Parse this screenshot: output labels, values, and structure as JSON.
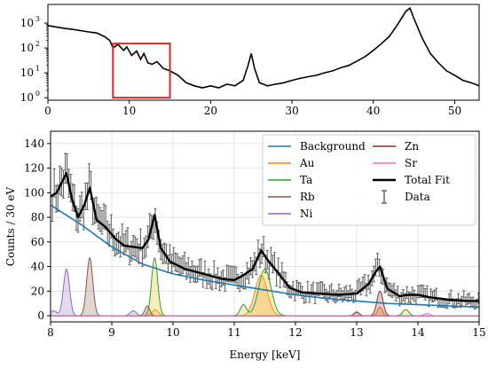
{
  "chart_data": [
    {
      "type": "line",
      "title": "",
      "xlabel": "",
      "ylabel": "",
      "xlim": [
        0,
        53
      ],
      "ylim_log10": [
        -0.1,
        3.75
      ],
      "y_scale": "log",
      "x_ticks": [
        0,
        10,
        20,
        30,
        40,
        50
      ],
      "x_tick_labels": [
        "0",
        "10",
        "20",
        "30",
        "40",
        "50"
      ],
      "y_ticks": [
        0,
        1,
        2,
        3
      ],
      "y_tick_labels": [
        "10",
        "10",
        "10",
        "10"
      ],
      "y_tick_exponents": [
        "0",
        "1",
        "2",
        "3"
      ],
      "grid": false,
      "series": [
        {
          "color": "#000000",
          "x": [
            0,
            1,
            2,
            3,
            4,
            5,
            6,
            7,
            7.6,
            8,
            8.6,
            9.3,
            9.7,
            10.3,
            10.9,
            11.4,
            11.8,
            12.3,
            12.8,
            13.4,
            14.2,
            15,
            16,
            17,
            18,
            19,
            20,
            21,
            22,
            23,
            24,
            24.6,
            25,
            25.4,
            26,
            27,
            28,
            29,
            30,
            31,
            32,
            33,
            34,
            35,
            36,
            37,
            38,
            39,
            40,
            41,
            42,
            43,
            44,
            44.5,
            45,
            46,
            47,
            48,
            49,
            50,
            51,
            52,
            53
          ],
          "y": [
            800,
            700,
            620,
            560,
            500,
            440,
            400,
            280,
            200,
            100,
            140,
            80,
            110,
            50,
            75,
            35,
            60,
            25,
            22,
            28,
            15,
            12,
            8,
            4,
            3,
            2.5,
            3,
            2.5,
            3.5,
            3,
            5,
            20,
            60,
            15,
            4,
            3,
            3.5,
            4,
            5,
            6,
            7,
            8,
            10,
            12,
            16,
            20,
            30,
            45,
            80,
            150,
            300,
            900,
            3000,
            4000,
            1500,
            250,
            60,
            25,
            12,
            8,
            5,
            4,
            3
          ]
        }
      ],
      "annotations": [
        {
          "type": "rectangle",
          "color": "#d62728",
          "x_range": [
            8,
            15
          ],
          "y_range": [
            1,
            150
          ]
        }
      ]
    },
    {
      "type": "line",
      "title": "",
      "xlabel": "Energy [keV]",
      "ylabel": "Counts / 30 eV",
      "xlim": [
        8,
        15
      ],
      "ylim": [
        -5,
        150
      ],
      "x_ticks": [
        8,
        9,
        10,
        11,
        12,
        13,
        14,
        15
      ],
      "x_tick_labels": [
        "8",
        "9",
        "10",
        "11",
        "12",
        "13",
        "14",
        "15"
      ],
      "y_ticks": [
        0,
        20,
        40,
        60,
        80,
        100,
        120,
        140
      ],
      "y_tick_labels": [
        "0",
        "20",
        "40",
        "60",
        "80",
        "100",
        "120",
        "140"
      ],
      "grid": true,
      "legend_position": "top-right",
      "series": [
        {
          "name": "Background",
          "color": "#1f77b4",
          "x": [
            8,
            8.5,
            9,
            9.5,
            10,
            10.5,
            11,
            11.5,
            12,
            12.5,
            13,
            13.5,
            14,
            14.5,
            15
          ],
          "y": [
            90,
            74,
            56,
            42,
            34,
            29,
            25,
            21,
            17,
            14,
            12,
            10,
            9,
            8,
            7
          ]
        },
        {
          "name": "Au",
          "color": "#ff7f0e",
          "fill": "rgba(255,127,14,0.25)",
          "peaks": [
            [
              9.71,
              5,
              0.05
            ],
            [
              11.44,
              33,
              0.1
            ],
            [
              13.38,
              7,
              0.04
            ]
          ]
        },
        {
          "name": "Ta",
          "color": "#2ca02c",
          "fill": "rgba(230,200,40,0.3)",
          "peaks": [
            [
              9.7,
              47,
              0.05
            ],
            [
              11.5,
              38,
              0.1
            ],
            [
              11.15,
              9,
              0.05
            ],
            [
              13.8,
              5,
              0.05
            ]
          ]
        },
        {
          "name": "Rb",
          "color": "#8c564b",
          "fill": "rgba(140,86,75,0.25)",
          "peaks": [
            [
              8.64,
              47,
              0.05
            ],
            [
              9.58,
              8,
              0.04
            ]
          ]
        },
        {
          "name": "Ni",
          "color": "#9467bd",
          "fill": "rgba(148,103,189,0.25)",
          "peaks": [
            [
              8.26,
              38,
              0.05
            ],
            [
              8.05,
              4,
              0.05
            ],
            [
              9.35,
              4,
              0.05
            ]
          ]
        },
        {
          "name": "Zn",
          "color": "#8c2d2d",
          "fill": "rgba(140,45,45,0.25)",
          "peaks": [
            [
              13.38,
              20,
              0.05
            ],
            [
              13.0,
              3,
              0.04
            ]
          ]
        },
        {
          "name": "Sr",
          "color": "#e377c2",
          "fill": "rgba(227,119,194,0.25)",
          "peaks": [
            [
              14.15,
              2,
              0.05
            ]
          ]
        },
        {
          "name": "Total Fit",
          "color": "#000000",
          "x": [
            8,
            8.1,
            8.2,
            8.26,
            8.35,
            8.45,
            8.55,
            8.64,
            8.75,
            8.9,
            9.05,
            9.2,
            9.35,
            9.5,
            9.6,
            9.7,
            9.8,
            9.95,
            10.2,
            10.5,
            10.8,
            11.0,
            11.15,
            11.3,
            11.44,
            11.55,
            11.7,
            11.9,
            12.1,
            12.4,
            12.7,
            13.0,
            13.2,
            13.3,
            13.38,
            13.5,
            13.7,
            13.85,
            14.0,
            14.2,
            14.5,
            14.8,
            15
          ],
          "y": [
            97,
            100,
            110,
            116,
            95,
            80,
            90,
            104,
            78,
            72,
            63,
            57,
            56,
            55,
            62,
            82,
            55,
            44,
            38,
            34,
            30,
            29,
            33,
            38,
            53,
            45,
            36,
            23,
            19,
            18,
            17,
            18,
            26,
            35,
            40,
            22,
            16,
            17,
            17,
            15,
            13,
            12,
            12
          ]
        },
        {
          "name": "Data",
          "color": "#666666",
          "style": "errorbar"
        }
      ]
    }
  ]
}
